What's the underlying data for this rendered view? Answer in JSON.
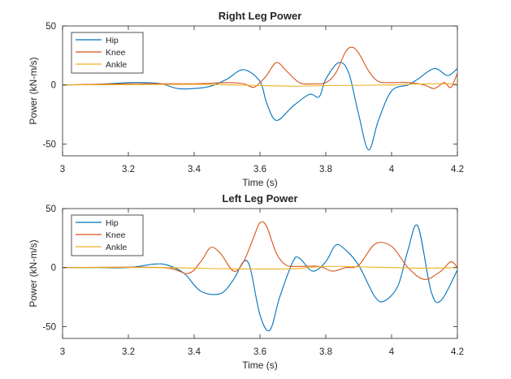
{
  "chart_data": [
    {
      "type": "line",
      "title": "Right Leg Power",
      "xlabel": "Time (s)",
      "ylabel": "Power (kN-m/s)",
      "xlim": [
        3,
        4.2
      ],
      "ylim": [
        -60,
        50
      ],
      "xticks": [
        "3",
        "3.2",
        "3.4",
        "3.6",
        "3.8",
        "4",
        "4.2"
      ],
      "yticks": [
        "50",
        "0",
        "-50"
      ],
      "legend_position": "top-left",
      "grid": false,
      "series": [
        {
          "name": "Hip",
          "color": "#0072BD",
          "x": [
            3.0,
            3.1,
            3.2,
            3.25,
            3.3,
            3.35,
            3.4,
            3.45,
            3.5,
            3.55,
            3.6,
            3.62,
            3.65,
            3.7,
            3.75,
            3.78,
            3.8,
            3.84,
            3.87,
            3.9,
            3.93,
            3.96,
            4.0,
            4.05,
            4.08,
            4.13,
            4.17,
            4.2
          ],
          "y": [
            0,
            0.5,
            2,
            2,
            1,
            -3,
            -3,
            -1,
            5,
            13,
            3,
            -15,
            -30,
            -18,
            -8,
            -10,
            5,
            19,
            10,
            -25,
            -55,
            -30,
            -5,
            0,
            5,
            14,
            8,
            14
          ]
        },
        {
          "name": "Knee",
          "color": "#D95319",
          "x": [
            3.0,
            3.2,
            3.4,
            3.5,
            3.55,
            3.58,
            3.6,
            3.62,
            3.65,
            3.68,
            3.72,
            3.76,
            3.8,
            3.83,
            3.86,
            3.88,
            3.9,
            3.93,
            3.96,
            4.0,
            4.05,
            4.1,
            4.13,
            4.16,
            4.18,
            4.2
          ],
          "y": [
            0,
            1,
            1,
            2,
            1,
            -2,
            2,
            8,
            19,
            12,
            2,
            1,
            2,
            10,
            28,
            32,
            27,
            12,
            3,
            2,
            2,
            0,
            -3,
            2,
            -2,
            10
          ]
        },
        {
          "name": "Ankle",
          "color": "#EDB120",
          "x": [
            3.0,
            3.4,
            3.6,
            3.7,
            3.8,
            4.0,
            4.1,
            4.2
          ],
          "y": [
            0,
            0.5,
            -0.5,
            -1,
            -0.5,
            0,
            1,
            1
          ]
        }
      ]
    },
    {
      "type": "line",
      "title": "Left Leg Power",
      "xlabel": "Time (s)",
      "ylabel": "Power (kN-m/s)",
      "xlim": [
        3,
        4.2
      ],
      "ylim": [
        -60,
        50
      ],
      "xticks": [
        "3",
        "3.2",
        "3.4",
        "3.6",
        "3.8",
        "4",
        "4.2"
      ],
      "yticks": [
        "50",
        "0",
        "-50"
      ],
      "legend_position": "top-left",
      "grid": false,
      "series": [
        {
          "name": "Hip",
          "color": "#0072BD",
          "x": [
            3.0,
            3.1,
            3.2,
            3.28,
            3.32,
            3.37,
            3.42,
            3.48,
            3.52,
            3.55,
            3.57,
            3.6,
            3.63,
            3.66,
            3.7,
            3.72,
            3.76,
            3.8,
            3.83,
            3.86,
            3.9,
            3.95,
            3.98,
            4.02,
            4.05,
            4.08,
            4.12,
            4.15,
            4.2
          ],
          "y": [
            0,
            0,
            0,
            3,
            2,
            -5,
            -20,
            -22,
            -10,
            5,
            0,
            -40,
            -53,
            -25,
            5,
            8,
            -3,
            5,
            19,
            15,
            2,
            -25,
            -28,
            -15,
            15,
            35,
            -20,
            -28,
            -2
          ]
        },
        {
          "name": "Knee",
          "color": "#D95319",
          "x": [
            3.0,
            3.3,
            3.38,
            3.42,
            3.45,
            3.48,
            3.52,
            3.55,
            3.58,
            3.6,
            3.62,
            3.65,
            3.68,
            3.72,
            3.78,
            3.82,
            3.86,
            3.9,
            3.95,
            4.0,
            4.05,
            4.1,
            4.15,
            4.18,
            4.2
          ],
          "y": [
            0,
            0,
            -5,
            5,
            17,
            12,
            -3,
            5,
            25,
            38,
            35,
            12,
            2,
            1,
            1,
            -3,
            0,
            2,
            20,
            18,
            0,
            -10,
            -3,
            5,
            0
          ]
        },
        {
          "name": "Ankle",
          "color": "#EDB120",
          "x": [
            3.0,
            3.3,
            3.5,
            3.7,
            3.8,
            4.0,
            4.1,
            4.2
          ],
          "y": [
            0,
            0,
            -1,
            -1,
            1,
            0,
            -0.5,
            0
          ]
        }
      ]
    }
  ]
}
